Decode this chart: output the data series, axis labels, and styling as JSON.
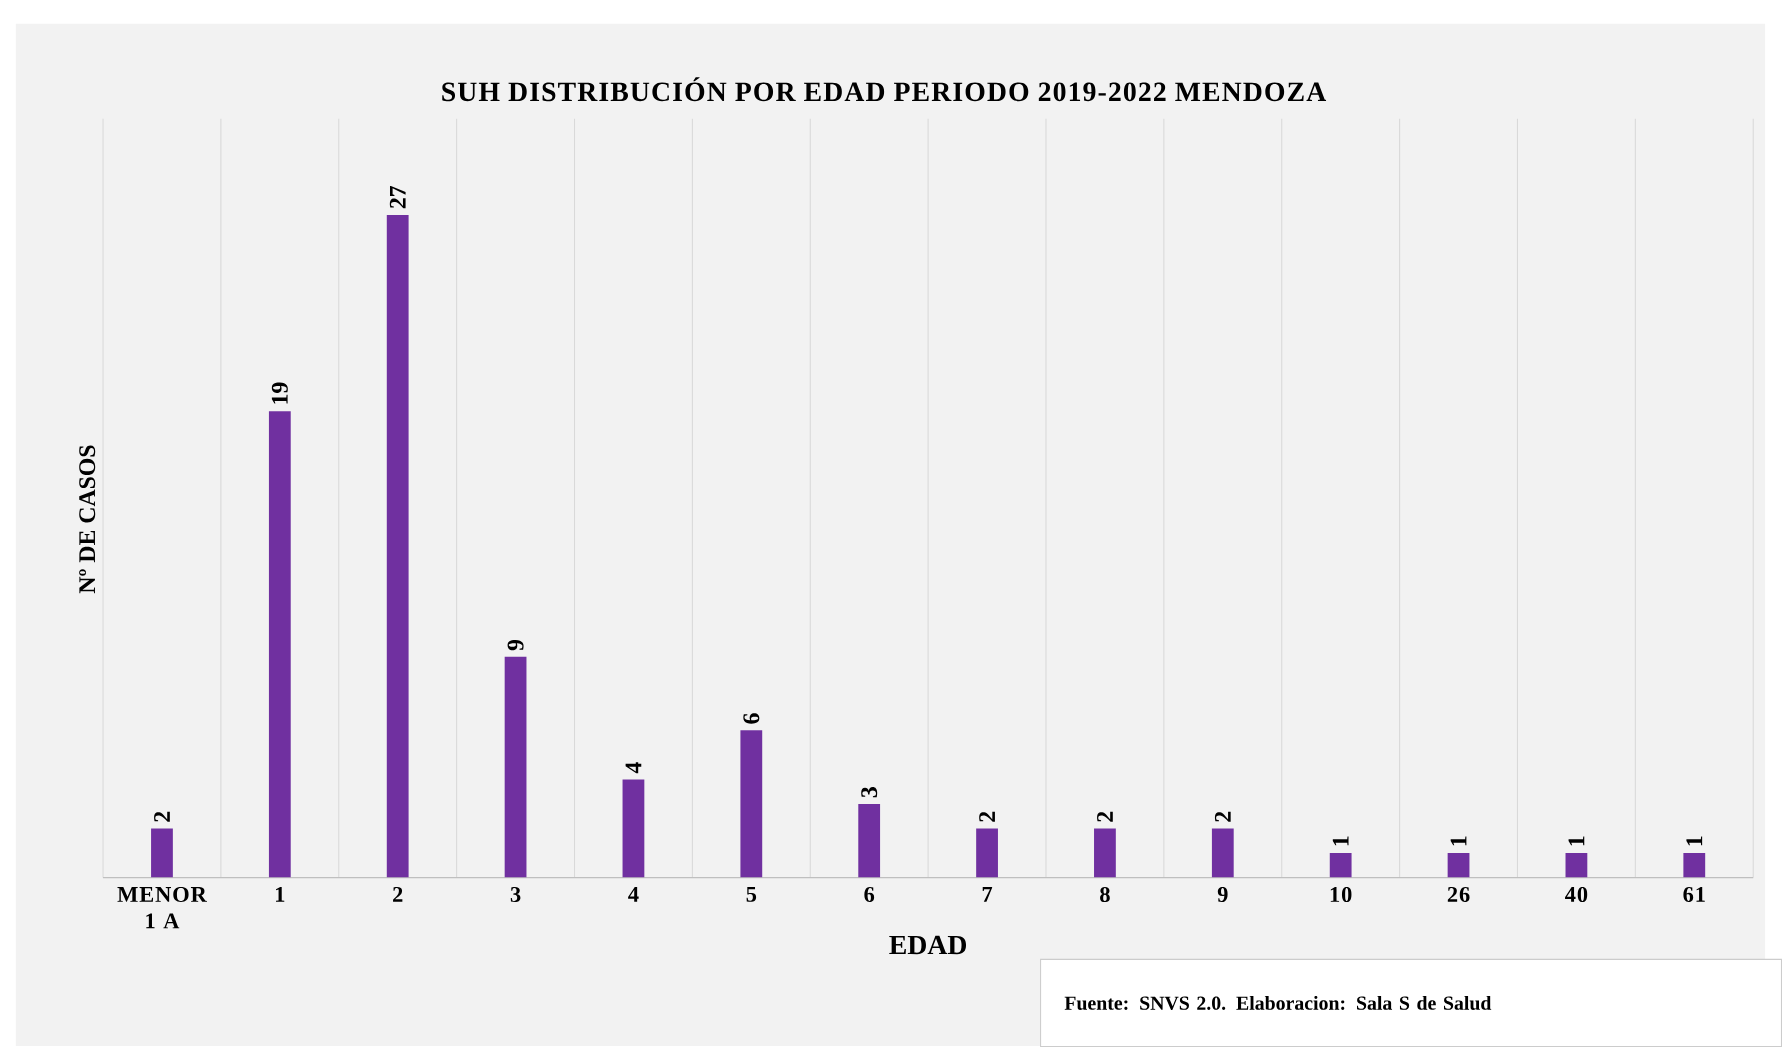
{
  "chart_data": {
    "type": "bar",
    "title": "SUH DISTRIBUCIÓN POR EDAD PERIODO 2019-2022 MENDOZA",
    "xlabel": "EDAD",
    "ylabel": "Nº DE CASOS",
    "categories": [
      "MENOR 1 A",
      "1",
      "2",
      "3",
      "4",
      "5",
      "6",
      "7",
      "8",
      "9",
      "10",
      "26",
      "40",
      "61"
    ],
    "values": [
      2,
      19,
      27,
      9,
      4,
      6,
      3,
      2,
      2,
      2,
      1,
      1,
      1,
      1
    ],
    "color": "#7030a0",
    "data_labels": true,
    "grid": "x",
    "annotations": [
      "Fuente: SNVS 2.0. Elaboracion: Sala S de Salud"
    ]
  }
}
